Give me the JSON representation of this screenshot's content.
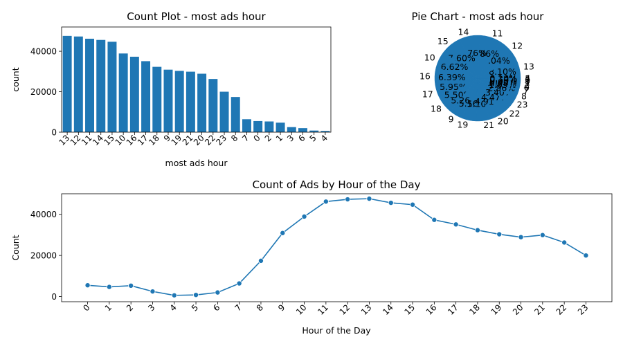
{
  "colors": {
    "primary": "#1f77b4",
    "axis": "#000000",
    "background": "#ffffff"
  },
  "chart_data": [
    {
      "type": "bar",
      "title": "Count Plot - most ads hour",
      "xlabel": "most ads hour",
      "ylabel": "count",
      "categories": [
        "13",
        "12",
        "11",
        "14",
        "15",
        "10",
        "16",
        "17",
        "18",
        "9",
        "19",
        "21",
        "20",
        "22",
        "23",
        "8",
        "7",
        "0",
        "2",
        "1",
        "3",
        "6",
        "5",
        "4"
      ],
      "values": [
        47600,
        47300,
        46200,
        45600,
        44700,
        38900,
        37300,
        35100,
        32300,
        30900,
        30300,
        29900,
        28900,
        26300,
        20000,
        17400,
        6400,
        5500,
        5300,
        4700,
        2500,
        2000,
        800,
        600
      ],
      "ylim": [
        0,
        52000
      ],
      "yticks": [
        0,
        20000,
        40000
      ]
    },
    {
      "type": "pie",
      "title": "Pie Chart - most ads hour",
      "labels": [
        "13",
        "12",
        "11",
        "14",
        "15",
        "10",
        "16",
        "17",
        "18",
        "9",
        "19",
        "21",
        "20",
        "22",
        "23",
        "8",
        "7",
        "0",
        "2",
        "1",
        "3",
        "6",
        "5",
        "4"
      ],
      "values": [
        47600,
        47300,
        46200,
        45600,
        44700,
        38900,
        37300,
        35100,
        32300,
        30900,
        30300,
        29900,
        28900,
        26300,
        20000,
        17400,
        6400,
        5500,
        5300,
        4700,
        2500,
        2000,
        800,
        600
      ],
      "pct_labels": [
        "8.10%",
        "8.04%",
        "7.86%",
        "7.76%",
        "7.60%",
        "6.62%",
        "6.39%",
        "5.95%",
        "5.50%",
        "5.26%",
        "5.16%",
        "5.10%",
        "4.91%",
        "4.47%",
        "3.40%",
        "2.96%",
        "1.09%",
        "0.94%",
        "0.90%",
        "0.80%",
        "0.43%",
        "0.34%",
        "0.14%",
        "0.10%"
      ]
    },
    {
      "type": "line",
      "title": "Count of Ads by Hour of the Day",
      "xlabel": "Hour of the Day",
      "ylabel": "Count",
      "x": [
        0,
        1,
        2,
        3,
        4,
        5,
        6,
        7,
        8,
        9,
        10,
        11,
        12,
        13,
        14,
        15,
        16,
        17,
        18,
        19,
        20,
        21,
        22,
        23
      ],
      "y": [
        5500,
        4700,
        5300,
        2500,
        600,
        800,
        2000,
        6400,
        17400,
        30900,
        38900,
        46200,
        47300,
        47600,
        45600,
        44700,
        37300,
        35100,
        32300,
        30300,
        28900,
        29900,
        26300,
        20000
      ],
      "ylim": [
        -2500,
        50000
      ],
      "yticks": [
        0,
        20000,
        40000
      ]
    }
  ]
}
